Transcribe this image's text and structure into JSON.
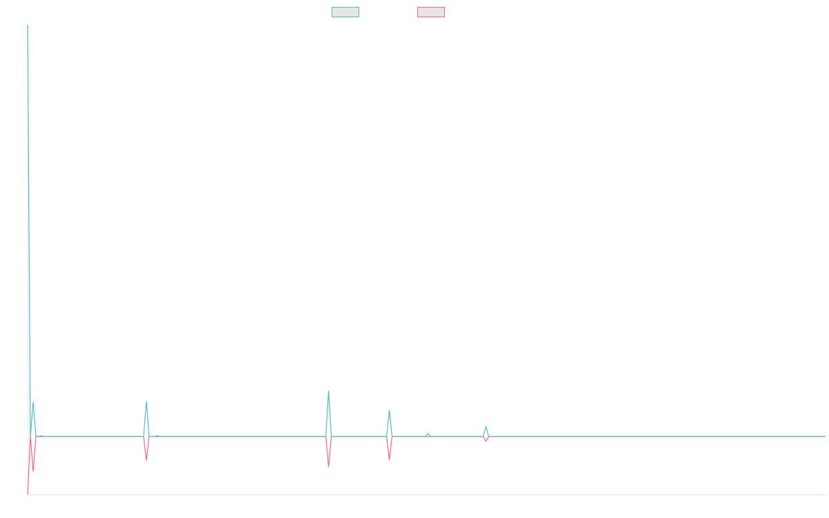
{
  "colors": {
    "series_a": "#4bc0c0",
    "series_b": "#ff6384",
    "legend_fill": "#e5e5e5",
    "axis": "#e0e0e0"
  },
  "chart_data": {
    "type": "line",
    "title": "",
    "xlabel": "",
    "ylabel": "",
    "xlim": [
      0,
      289
    ],
    "ylim": [
      -84,
      596
    ],
    "grid": false,
    "legend": "top-center",
    "series": [
      {
        "color": "#4bc0c0",
        "x": [
          0,
          1,
          2,
          3,
          42,
          43,
          44,
          108,
          109,
          110,
          130,
          131,
          132,
          144,
          145,
          146,
          165,
          166,
          167,
          289
        ],
        "y": [
          596,
          0,
          50,
          0,
          0,
          51,
          0,
          0,
          66,
          0,
          0,
          38,
          0,
          0,
          4,
          0,
          0,
          14,
          0,
          0
        ]
      },
      {
        "color": "#ff6384",
        "x": [
          0,
          1,
          2,
          3,
          4,
          5,
          6,
          42,
          43,
          44,
          46,
          47,
          48,
          108,
          109,
          110,
          130,
          131,
          132,
          165,
          166,
          167,
          289
        ],
        "y": [
          -84,
          0,
          -51,
          0,
          0,
          1,
          0,
          0,
          -35,
          0,
          0,
          1,
          0,
          0,
          -44,
          0,
          0,
          -34,
          0,
          0,
          -7,
          0,
          0
        ]
      }
    ]
  }
}
